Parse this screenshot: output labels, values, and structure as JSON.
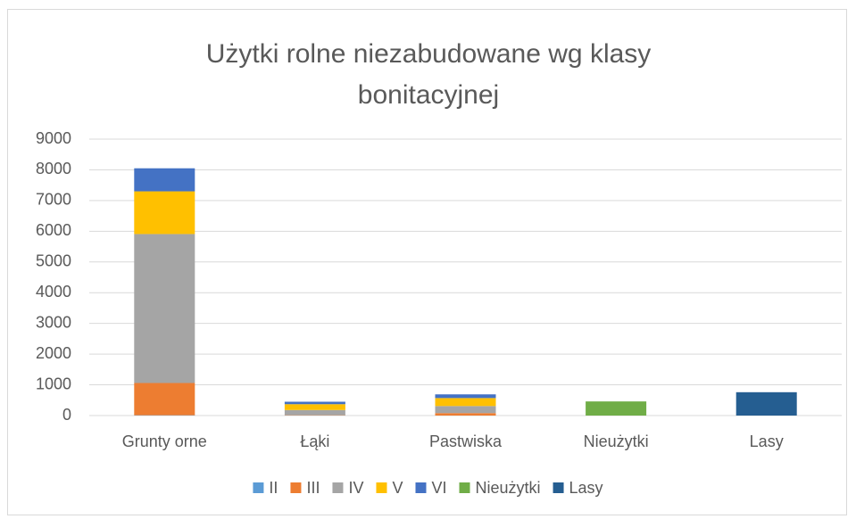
{
  "chart_data": {
    "type": "stacked_bar",
    "title": "Użytki rolne niezabudowane wg klasy bonitacyjnej",
    "categories": [
      "Grunty orne",
      "Łąki",
      "Pastwiska",
      "Nieużytki",
      "Lasy"
    ],
    "series": [
      {
        "name": "II",
        "color": "#5b9bd5",
        "values": [
          10,
          null,
          null,
          null,
          null
        ]
      },
      {
        "name": "III",
        "color": "#ed7d31",
        "values": [
          1050,
          10,
          80,
          null,
          null
        ]
      },
      {
        "name": "IV",
        "color": "#a5a5a5",
        "values": [
          4850,
          170,
          230,
          null,
          null
        ]
      },
      {
        "name": "V",
        "color": "#ffc000",
        "values": [
          1390,
          190,
          260,
          null,
          null
        ]
      },
      {
        "name": "VI",
        "color": "#4472c4",
        "values": [
          750,
          80,
          120,
          null,
          null
        ]
      },
      {
        "name": "Nieużytki",
        "color": "#70ad47",
        "values": [
          null,
          null,
          null,
          460,
          null
        ]
      },
      {
        "name": "Lasy",
        "color": "#255e91",
        "values": [
          null,
          null,
          null,
          null,
          760
        ]
      }
    ],
    "ylim": [
      0,
      9000
    ],
    "yticks": [
      0,
      1000,
      2000,
      3000,
      4000,
      5000,
      6000,
      7000,
      8000,
      9000
    ],
    "grid": true,
    "legend": "bottom"
  }
}
